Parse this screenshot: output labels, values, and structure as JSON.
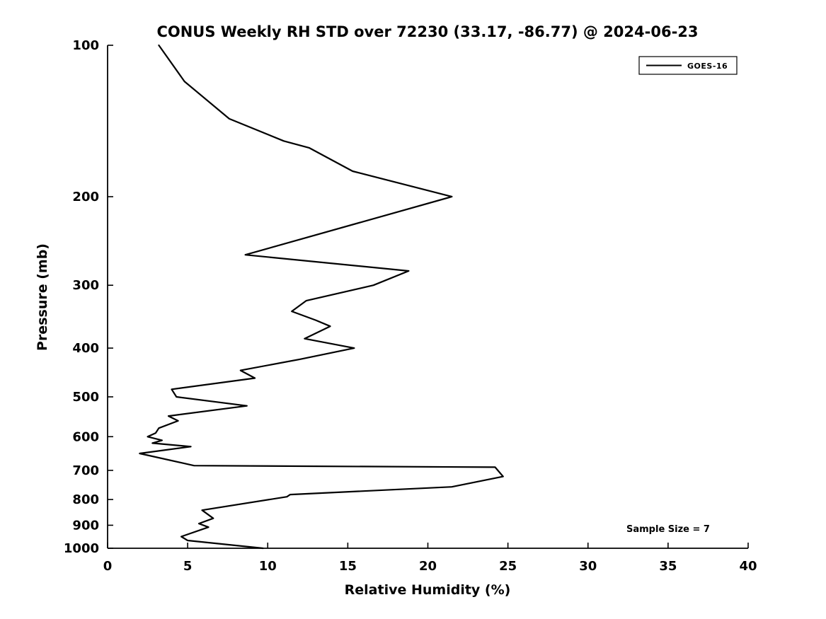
{
  "chart_data": {
    "type": "line",
    "title": "CONUS Weekly RH STD over 72230 (33.17, -86.77) @ 2024-06-23",
    "xlabel": "Relative Humidity (%)",
    "ylabel": "Pressure (mb)",
    "xlim": [
      0,
      40
    ],
    "ylim": [
      100,
      1000
    ],
    "xscale": "linear",
    "yscale": "log",
    "y_axis_inverted": true,
    "grid": false,
    "xticks": [
      0,
      5,
      10,
      15,
      20,
      25,
      30,
      35,
      40
    ],
    "yticks": [
      100,
      200,
      300,
      400,
      500,
      600,
      700,
      800,
      900,
      1000
    ],
    "legend": {
      "position": "top-right",
      "entries": [
        {
          "label": "GOES-16",
          "color": "#000000",
          "line_style": "solid"
        }
      ]
    },
    "annotation": {
      "text": "Sample Size = 7"
    },
    "series": [
      {
        "name": "GOES-16",
        "color": "#000000",
        "points_pressure_mb_rh_pct": [
          [
            100,
            3.2
          ],
          [
            118,
            4.8
          ],
          [
            140,
            7.6
          ],
          [
            155,
            11.0
          ],
          [
            160,
            12.6
          ],
          [
            178,
            15.3
          ],
          [
            200,
            21.5
          ],
          [
            261,
            8.6
          ],
          [
            281,
            18.8
          ],
          [
            300,
            16.6
          ],
          [
            322,
            12.4
          ],
          [
            338,
            11.5
          ],
          [
            352,
            13.0
          ],
          [
            362,
            13.9
          ],
          [
            383,
            12.3
          ],
          [
            400,
            15.4
          ],
          [
            421,
            12.0
          ],
          [
            443,
            8.3
          ],
          [
            459,
            9.2
          ],
          [
            483,
            4.0
          ],
          [
            500,
            4.3
          ],
          [
            521,
            8.7
          ],
          [
            546,
            3.8
          ],
          [
            558,
            4.4
          ],
          [
            577,
            3.2
          ],
          [
            590,
            3.0
          ],
          [
            600,
            2.5
          ],
          [
            610,
            3.4
          ],
          [
            618,
            2.8
          ],
          [
            628,
            5.2
          ],
          [
            648,
            2.0
          ],
          [
            685,
            5.4
          ],
          [
            690,
            24.2
          ],
          [
            720,
            24.7
          ],
          [
            755,
            21.5
          ],
          [
            782,
            11.4
          ],
          [
            790,
            11.2
          ],
          [
            840,
            5.9
          ],
          [
            872,
            6.6
          ],
          [
            893,
            5.7
          ],
          [
            908,
            6.3
          ],
          [
            948,
            4.6
          ],
          [
            965,
            5.0
          ],
          [
            1000,
            9.7
          ]
        ]
      }
    ]
  },
  "colors": {
    "line": "#000000",
    "text": "#000000",
    "background": "#ffffff"
  }
}
